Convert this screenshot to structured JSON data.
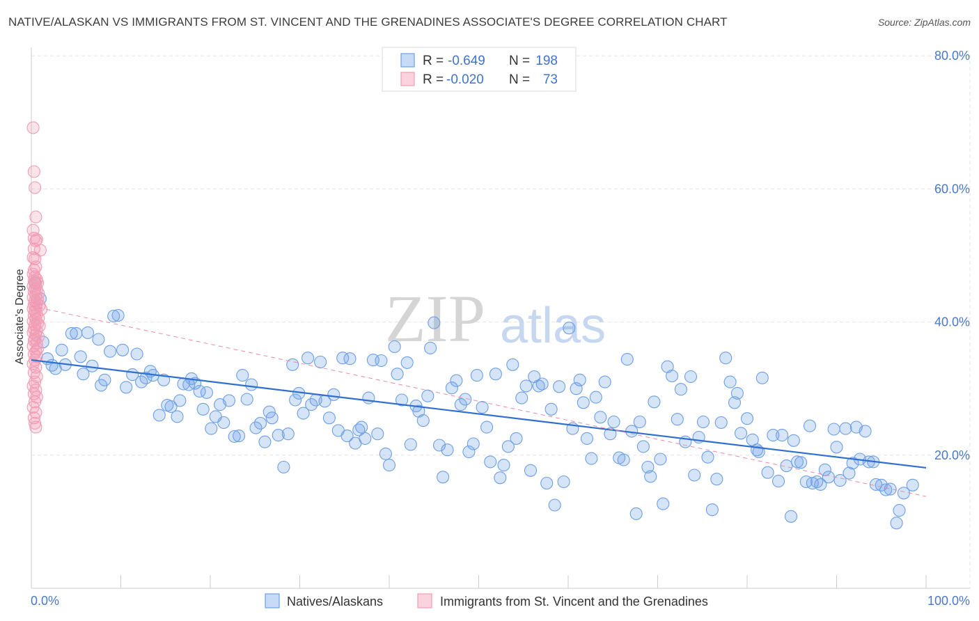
{
  "title": "NATIVE/ALASKAN VS IMMIGRANTS FROM ST. VINCENT AND THE GRENADINES ASSOCIATE'S DEGREE CORRELATION CHART",
  "source": "Source: ZipAtlas.com",
  "watermark": {
    "zip": "ZIP",
    "atlas": "atlas"
  },
  "chart_data": {
    "type": "scatter",
    "ylabel": "Associate's Degree",
    "xlim": [
      0,
      100
    ],
    "ylim": [
      0,
      82
    ],
    "x_tick_labels": [
      {
        "value": 0,
        "label": "0.0%"
      },
      {
        "value": 100,
        "label": "100.0%"
      }
    ],
    "y_tick_labels": [
      {
        "value": 20,
        "label": "20.0%"
      },
      {
        "value": 40,
        "label": "40.0%"
      },
      {
        "value": 60,
        "label": "60.0%"
      },
      {
        "value": 80,
        "label": "80.0%"
      }
    ],
    "grid": true,
    "legend_position": "top-center",
    "stats": [
      {
        "r_label": "R =",
        "r": "-0.649",
        "n_label": "N =",
        "n": "198",
        "color": "#6c9fe6"
      },
      {
        "r_label": "R =",
        "r": "-0.020",
        "n_label": "N =",
        "n": "73",
        "color": "#f29bb5"
      }
    ],
    "series": [
      {
        "name": "Natives/Alaskans",
        "color": "#6c9fe6",
        "trend": {
          "x": [
            0,
            100
          ],
          "y": [
            34.3,
            18.1
          ],
          "color": "#2f6fd1",
          "dashed": false
        },
        "points": [
          [
            0.4,
            45.9
          ],
          [
            1.0,
            43.5
          ],
          [
            1.3,
            37.0
          ],
          [
            1.8,
            34.5
          ],
          [
            2.3,
            33.5
          ],
          [
            2.7,
            33.0
          ],
          [
            3.4,
            35.8
          ],
          [
            3.8,
            33.6
          ],
          [
            4.5,
            38.3
          ],
          [
            5.0,
            38.3
          ],
          [
            5.5,
            34.8
          ],
          [
            5.8,
            32.2
          ],
          [
            6.3,
            38.4
          ],
          [
            6.8,
            33.4
          ],
          [
            7.5,
            37.4
          ],
          [
            7.8,
            30.5
          ],
          [
            8.2,
            31.3
          ],
          [
            8.8,
            35.6
          ],
          [
            9.2,
            40.9
          ],
          [
            9.7,
            41.0
          ],
          [
            10.2,
            35.8
          ],
          [
            10.6,
            30.2
          ],
          [
            11.3,
            32.1
          ],
          [
            11.8,
            35.2
          ],
          [
            12.3,
            31.0
          ],
          [
            12.8,
            31.6
          ],
          [
            13.3,
            32.6
          ],
          [
            13.6,
            32.0
          ],
          [
            14.3,
            26.0
          ],
          [
            14.8,
            31.3
          ],
          [
            15.2,
            27.5
          ],
          [
            15.6,
            27.3
          ],
          [
            16.3,
            25.8
          ],
          [
            16.6,
            28.2
          ],
          [
            17.0,
            30.7
          ],
          [
            17.6,
            30.6
          ],
          [
            17.9,
            31.5
          ],
          [
            18.3,
            30.8
          ],
          [
            18.8,
            29.6
          ],
          [
            19.2,
            26.9
          ],
          [
            19.6,
            29.4
          ],
          [
            20.1,
            24.0
          ],
          [
            20.6,
            25.8
          ],
          [
            21.1,
            27.6
          ],
          [
            21.5,
            24.9
          ],
          [
            22.1,
            28.2
          ],
          [
            22.7,
            22.8
          ],
          [
            23.2,
            22.9
          ],
          [
            23.6,
            32.0
          ],
          [
            24.1,
            28.4
          ],
          [
            24.6,
            30.6
          ],
          [
            25.1,
            24.1
          ],
          [
            25.6,
            24.8
          ],
          [
            26.1,
            22.0
          ],
          [
            26.6,
            26.5
          ],
          [
            26.9,
            25.6
          ],
          [
            27.6,
            23.0
          ],
          [
            28.2,
            18.2
          ],
          [
            28.7,
            23.2
          ],
          [
            29.2,
            33.6
          ],
          [
            29.5,
            28.3
          ],
          [
            29.9,
            29.3
          ],
          [
            30.4,
            26.3
          ],
          [
            30.9,
            34.6
          ],
          [
            31.3,
            27.6
          ],
          [
            31.8,
            28.3
          ],
          [
            32.3,
            34.0
          ],
          [
            32.8,
            28.1
          ],
          [
            33.3,
            25.6
          ],
          [
            33.8,
            29.1
          ],
          [
            34.3,
            23.7
          ],
          [
            34.8,
            34.6
          ],
          [
            35.3,
            22.9
          ],
          [
            35.6,
            34.5
          ],
          [
            36.2,
            21.8
          ],
          [
            36.6,
            23.8
          ],
          [
            36.9,
            24.2
          ],
          [
            37.3,
            22.5
          ],
          [
            37.7,
            28.6
          ],
          [
            38.2,
            34.3
          ],
          [
            38.7,
            23.2
          ],
          [
            39.1,
            34.2
          ],
          [
            39.6,
            20.2
          ],
          [
            40.0,
            18.5
          ],
          [
            40.6,
            36.3
          ],
          [
            40.9,
            32.2
          ],
          [
            41.4,
            28.3
          ],
          [
            42.0,
            33.9
          ],
          [
            42.4,
            21.6
          ],
          [
            43.0,
            27.4
          ],
          [
            43.3,
            26.6
          ],
          [
            43.8,
            25.2
          ],
          [
            44.3,
            28.9
          ],
          [
            44.6,
            36.1
          ],
          [
            45.0,
            39.9
          ],
          [
            45.6,
            21.5
          ],
          [
            46.0,
            16.7
          ],
          [
            46.5,
            20.8
          ],
          [
            47.0,
            30.1
          ],
          [
            47.5,
            31.2
          ],
          [
            48.0,
            27.6
          ],
          [
            48.5,
            28.4
          ],
          [
            48.9,
            20.5
          ],
          [
            49.4,
            21.7
          ],
          [
            49.8,
            32.0
          ],
          [
            50.4,
            27.2
          ],
          [
            50.9,
            24.2
          ],
          [
            51.3,
            19.0
          ],
          [
            51.9,
            32.2
          ],
          [
            52.4,
            16.6
          ],
          [
            52.8,
            18.5
          ],
          [
            53.3,
            21.3
          ],
          [
            53.8,
            33.6
          ],
          [
            54.2,
            22.5
          ],
          [
            54.8,
            28.6
          ],
          [
            55.3,
            30.4
          ],
          [
            55.8,
            17.7
          ],
          [
            56.2,
            31.8
          ],
          [
            56.7,
            30.4
          ],
          [
            57.1,
            30.7
          ],
          [
            57.6,
            15.8
          ],
          [
            58.1,
            26.9
          ],
          [
            58.5,
            12.5
          ],
          [
            59.0,
            30.3
          ],
          [
            59.5,
            16.0
          ],
          [
            60.1,
            39.1
          ],
          [
            60.5,
            24.0
          ],
          [
            60.9,
            30.0
          ],
          [
            61.3,
            31.3
          ],
          [
            61.7,
            27.9
          ],
          [
            62.1,
            22.5
          ],
          [
            62.6,
            19.5
          ],
          [
            63.1,
            28.7
          ],
          [
            63.6,
            25.7
          ],
          [
            64.1,
            31.0
          ],
          [
            64.7,
            23.2
          ],
          [
            65.1,
            25.0
          ],
          [
            65.7,
            19.6
          ],
          [
            66.2,
            19.3
          ],
          [
            66.6,
            34.4
          ],
          [
            67.1,
            23.6
          ],
          [
            67.6,
            11.2
          ],
          [
            68.0,
            25.0
          ],
          [
            68.4,
            21.3
          ],
          [
            68.9,
            18.2
          ],
          [
            69.2,
            16.8
          ],
          [
            69.6,
            28.0
          ],
          [
            70.3,
            19.4
          ],
          [
            70.6,
            12.7
          ],
          [
            71.1,
            33.3
          ],
          [
            71.6,
            31.9
          ],
          [
            72.2,
            25.4
          ],
          [
            72.6,
            29.9
          ],
          [
            73.1,
            22.0
          ],
          [
            73.7,
            31.8
          ],
          [
            74.1,
            17.0
          ],
          [
            74.6,
            22.7
          ],
          [
            75.1,
            25.0
          ],
          [
            75.6,
            19.7
          ],
          [
            76.1,
            11.8
          ],
          [
            76.6,
            16.4
          ],
          [
            77.1,
            24.9
          ],
          [
            77.6,
            34.6
          ],
          [
            78.1,
            31.0
          ],
          [
            78.6,
            27.9
          ],
          [
            78.9,
            29.3
          ],
          [
            79.3,
            23.3
          ],
          [
            80.0,
            25.5
          ],
          [
            80.6,
            22.3
          ],
          [
            81.1,
            20.8
          ],
          [
            81.3,
            20.5
          ],
          [
            81.7,
            31.6
          ],
          [
            82.3,
            17.4
          ],
          [
            82.9,
            23.0
          ],
          [
            83.5,
            16.1
          ],
          [
            83.9,
            23.0
          ],
          [
            84.4,
            18.4
          ],
          [
            84.9,
            10.8
          ],
          [
            85.2,
            22.2
          ],
          [
            85.6,
            19.0
          ],
          [
            86.0,
            18.9
          ],
          [
            86.6,
            16.0
          ],
          [
            87.0,
            24.4
          ],
          [
            87.3,
            15.8
          ],
          [
            87.8,
            16.0
          ],
          [
            88.2,
            15.6
          ],
          [
            88.7,
            17.8
          ],
          [
            89.1,
            16.7
          ],
          [
            89.7,
            23.9
          ],
          [
            90.0,
            21.2
          ],
          [
            90.4,
            16.2
          ],
          [
            91.0,
            24.0
          ],
          [
            91.4,
            17.3
          ],
          [
            91.8,
            18.8
          ],
          [
            92.2,
            24.2
          ],
          [
            92.6,
            19.4
          ],
          [
            93.2,
            23.6
          ],
          [
            93.6,
            19.0
          ],
          [
            94.1,
            19.0
          ],
          [
            94.4,
            15.6
          ],
          [
            95.0,
            15.5
          ],
          [
            95.5,
            14.8
          ],
          [
            96.0,
            14.9
          ],
          [
            97.0,
            11.7
          ],
          [
            96.7,
            9.8
          ],
          [
            97.5,
            14.3
          ],
          [
            98.5,
            15.5
          ]
        ]
      },
      {
        "name": "Immigrants from St. Vincent and the Grenadines",
        "color": "#f29bb5",
        "trend": {
          "x": [
            0,
            100
          ],
          "y": [
            42.4,
            13.8
          ],
          "color": "#e98ba8",
          "dashed": true
        },
        "points": [
          [
            0.2,
            69.2
          ],
          [
            0.3,
            62.6
          ],
          [
            0.4,
            60.2
          ],
          [
            0.5,
            55.8
          ],
          [
            0.2,
            53.8
          ],
          [
            0.3,
            52.6
          ],
          [
            0.5,
            52.2
          ],
          [
            0.6,
            52.4
          ],
          [
            0.3,
            51.0
          ],
          [
            1.0,
            50.8
          ],
          [
            0.2,
            49.7
          ],
          [
            0.4,
            49.5
          ],
          [
            0.5,
            48.3
          ],
          [
            0.3,
            47.8
          ],
          [
            0.2,
            47.2
          ],
          [
            0.4,
            46.8
          ],
          [
            0.6,
            46.4
          ],
          [
            0.3,
            46.2
          ],
          [
            0.5,
            45.8
          ],
          [
            0.7,
            45.9
          ],
          [
            0.2,
            45.4
          ],
          [
            0.4,
            45.0
          ],
          [
            0.6,
            44.9
          ],
          [
            0.8,
            44.3
          ],
          [
            0.3,
            44.6
          ],
          [
            0.5,
            44.0
          ],
          [
            0.2,
            43.7
          ],
          [
            0.7,
            43.4
          ],
          [
            0.4,
            43.2
          ],
          [
            0.6,
            42.8
          ],
          [
            0.3,
            42.6
          ],
          [
            0.9,
            42.5
          ],
          [
            0.5,
            42.2
          ],
          [
            0.2,
            42.0
          ],
          [
            1.1,
            41.9
          ],
          [
            0.4,
            41.6
          ],
          [
            0.6,
            41.2
          ],
          [
            0.3,
            41.0
          ],
          [
            0.8,
            40.6
          ],
          [
            0.5,
            40.4
          ],
          [
            0.2,
            40.1
          ],
          [
            0.7,
            39.8
          ],
          [
            0.4,
            39.6
          ],
          [
            0.9,
            39.4
          ],
          [
            0.3,
            39.0
          ],
          [
            0.6,
            38.7
          ],
          [
            0.2,
            38.4
          ],
          [
            0.5,
            38.1
          ],
          [
            0.8,
            37.8
          ],
          [
            0.4,
            37.5
          ],
          [
            0.3,
            37.2
          ],
          [
            0.6,
            36.8
          ],
          [
            0.2,
            36.4
          ],
          [
            0.7,
            36.0
          ],
          [
            0.5,
            35.6
          ],
          [
            0.3,
            35.2
          ],
          [
            0.6,
            34.8
          ],
          [
            0.4,
            34.3
          ],
          [
            0.2,
            33.7
          ],
          [
            0.5,
            33.2
          ],
          [
            0.3,
            32.4
          ],
          [
            0.6,
            31.8
          ],
          [
            0.4,
            31.0
          ],
          [
            0.2,
            30.4
          ],
          [
            0.5,
            29.8
          ],
          [
            0.3,
            29.2
          ],
          [
            0.6,
            28.7
          ],
          [
            0.4,
            28.0
          ],
          [
            0.2,
            27.2
          ],
          [
            0.5,
            26.4
          ],
          [
            0.3,
            25.6
          ],
          [
            0.4,
            24.8
          ],
          [
            0.5,
            24.2
          ]
        ]
      }
    ]
  }
}
